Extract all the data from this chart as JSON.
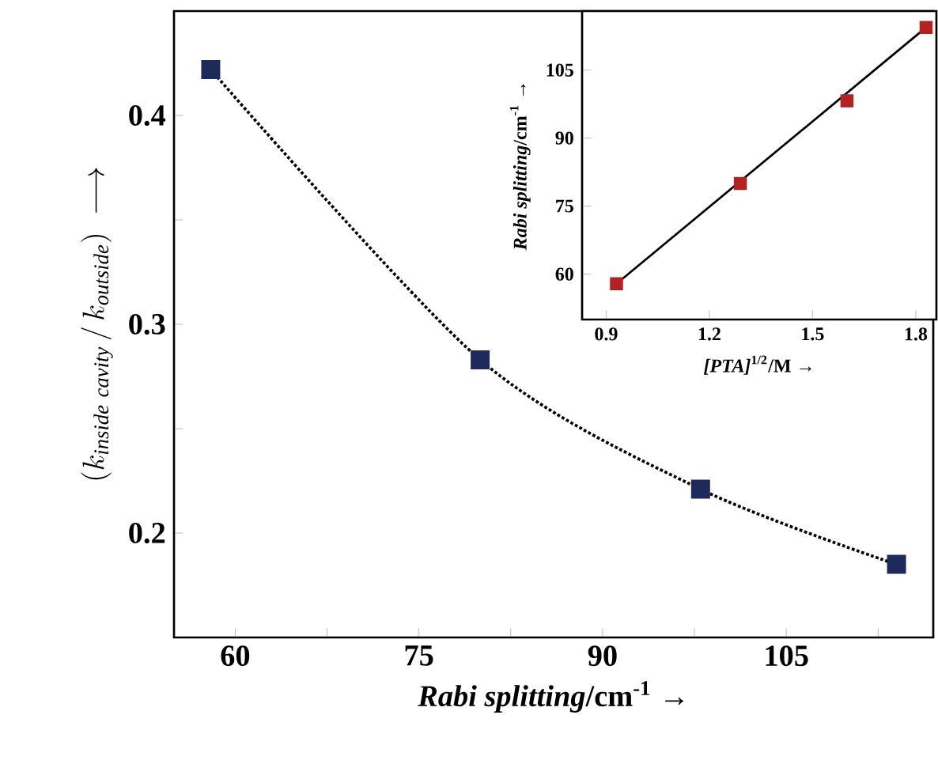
{
  "chart_data": [
    {
      "type": "scatter",
      "xlabel": "*Rabi splitting*/cm$^{-1}$ →",
      "ylabel": "\\left(k_{\\mathit{inside\\ cavity}}\\,/\\,k_{\\mathit{outside}}\\right)\\;\\longrightarrow",
      "xlim": [
        55,
        117
      ],
      "ylim": [
        0.15,
        0.45
      ],
      "xticks": [
        60,
        {
          "value": 67.5,
          "label": null
        },
        75,
        {
          "value": 82.5,
          "label": null
        },
        90,
        {
          "value": 97.5,
          "label": null
        },
        105,
        {
          "value": 112.5,
          "label": null
        }
      ],
      "yticks": [
        0.2,
        {
          "value": 0.25,
          "label": null
        },
        0.3,
        {
          "value": 0.35,
          "label": null
        },
        0.4
      ],
      "series": [
        {
          "type": "line",
          "color": "#000000",
          "line_style": "dotted",
          "marker": "none",
          "x": [
            58,
            80,
            98,
            114
          ],
          "values": [
            0.422,
            0.283,
            0.221,
            0.185
          ]
        },
        {
          "color": "#1f2a5c",
          "marker": "square",
          "x": [
            58,
            80,
            98,
            114
          ],
          "values": [
            0.422,
            0.283,
            0.221,
            0.185
          ]
        }
      ]
    },
    {
      "type": "scatter",
      "xlabel": "*[PTA]*$^{1/2}$/M →",
      "ylabel": "*Rabi splitting*/cm$^{-1}$ →",
      "xlim": [
        0.83,
        1.86
      ],
      "ylim": [
        50,
        118
      ],
      "xticks": [
        0.9,
        1.2,
        1.5,
        1.8
      ],
      "yticks": [
        60,
        75,
        90,
        105
      ],
      "series": [
        {
          "type": "line",
          "color": "#000000",
          "line_style": "solid",
          "marker": "none",
          "x": [
            0.93,
            1.83
          ],
          "values": [
            57.9,
            114.4
          ]
        },
        {
          "color": "#b22222",
          "marker": "square",
          "x": [
            0.93,
            1.29,
            1.6,
            1.83
          ],
          "values": [
            57.9,
            80,
            98.2,
            114.4
          ]
        }
      ]
    }
  ]
}
